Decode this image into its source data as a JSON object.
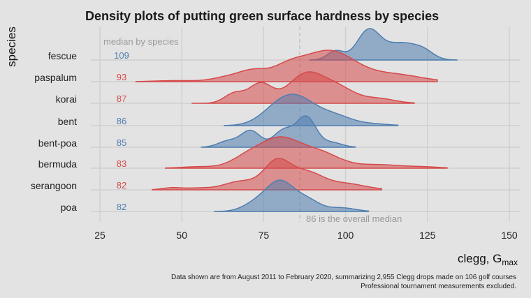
{
  "chart_data": {
    "type": "ridgeline",
    "title": "Density plots of putting green surface hardness by species",
    "xlabel": "clegg, G",
    "xlabel_sub": "max",
    "ylabel": "species",
    "xlim": [
      20,
      152
    ],
    "x_ticks": [
      25,
      50,
      75,
      100,
      125,
      150
    ],
    "grid": true,
    "median_header": "median by species",
    "overall_median_value": 86,
    "overall_median_label": "86 is the overall median",
    "colors": {
      "blue": "#4f7eb0",
      "red": "#d64a4a"
    },
    "series": [
      {
        "name": "fescue",
        "median": 109,
        "color": "blue",
        "x_range": [
          89,
          134
        ],
        "peaks": [
          [
            97,
            0.3,
            2.5
          ],
          [
            107,
            0.95,
            3.5
          ],
          [
            117,
            0.55,
            5
          ],
          [
            124,
            0.2,
            3
          ]
        ]
      },
      {
        "name": "paspalum",
        "median": 93,
        "color": "red",
        "x_range": [
          36,
          128
        ],
        "peaks": [
          [
            48,
            0.03,
            6
          ],
          [
            65,
            0.15,
            5
          ],
          [
            72,
            0.25,
            4
          ],
          [
            82,
            0.35,
            5
          ],
          [
            95,
            0.88,
            8
          ],
          [
            115,
            0.2,
            8
          ]
        ]
      },
      {
        "name": "korai",
        "median": 87,
        "color": "red",
        "x_range": [
          53,
          121
        ],
        "peaks": [
          [
            66,
            0.25,
            3
          ],
          [
            74,
            0.5,
            3.5
          ],
          [
            88,
            0.75,
            5.5
          ],
          [
            98,
            0.35,
            5
          ],
          [
            110,
            0.12,
            5
          ]
        ]
      },
      {
        "name": "bent",
        "median": 86,
        "color": "blue",
        "x_range": [
          63,
          116
        ],
        "peaks": [
          [
            78,
            0.3,
            5
          ],
          [
            85,
            0.95,
            6
          ],
          [
            97,
            0.3,
            5
          ],
          [
            108,
            0.06,
            5
          ]
        ]
      },
      {
        "name": "bent-poa",
        "median": 85,
        "color": "blue",
        "x_range": [
          56,
          103
        ],
        "peaks": [
          [
            64,
            0.2,
            3
          ],
          [
            71,
            0.55,
            3
          ],
          [
            81,
            0.55,
            3
          ],
          [
            88,
            1.0,
            3
          ],
          [
            96,
            0.15,
            3
          ]
        ]
      },
      {
        "name": "bermuda",
        "median": 83,
        "color": "red",
        "x_range": [
          45,
          131
        ],
        "peaks": [
          [
            55,
            0.05,
            5
          ],
          [
            70,
            0.35,
            5
          ],
          [
            80,
            0.95,
            6
          ],
          [
            92,
            0.5,
            6
          ],
          [
            110,
            0.12,
            8
          ],
          [
            125,
            0.03,
            4
          ]
        ]
      },
      {
        "name": "serangoon",
        "median": 82,
        "color": "red",
        "x_range": [
          41,
          111
        ],
        "peaks": [
          [
            47,
            0.06,
            3
          ],
          [
            55,
            0.05,
            4
          ],
          [
            68,
            0.25,
            5
          ],
          [
            79,
            0.8,
            4
          ],
          [
            88,
            0.5,
            5
          ],
          [
            100,
            0.18,
            6
          ]
        ]
      },
      {
        "name": "poa",
        "median": 82,
        "color": "blue",
        "x_range": [
          60,
          107
        ],
        "peaks": [
          [
            73,
            0.3,
            4
          ],
          [
            80,
            0.95,
            4
          ],
          [
            88,
            0.4,
            4
          ],
          [
            99,
            0.12,
            4
          ]
        ]
      }
    ],
    "caption_lines": [
      "Data shown are from August 2011 to February 2020, summarizing 2,955 Clegg drops made on 106 golf courses",
      "Professional tournament measurements excluded."
    ]
  }
}
